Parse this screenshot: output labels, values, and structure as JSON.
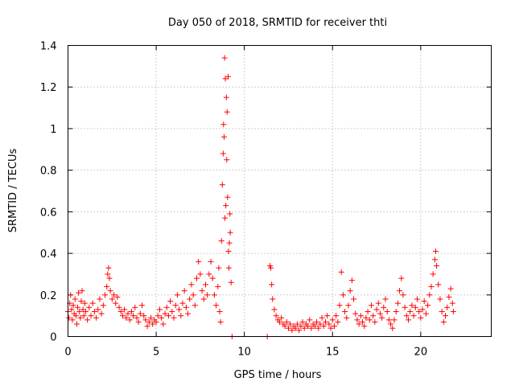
{
  "chart_data": {
    "type": "scatter",
    "title": "Day 050 of 2018, SRMTID for receiver thti",
    "xlabel": "GPS time / hours",
    "ylabel": "SRMTID / TECUs",
    "xlim": [
      0,
      24
    ],
    "ylim": [
      0,
      1.4
    ],
    "x_ticks": [
      0,
      5,
      10,
      15,
      20
    ],
    "x_tick_labels": [
      "0",
      "5",
      "10",
      "15",
      "20"
    ],
    "y_ticks": [
      0,
      0.2,
      0.4,
      0.6,
      0.8,
      1.0,
      1.2,
      1.4
    ],
    "y_tick_labels": [
      "0",
      "0.2",
      "0.4",
      "0.6",
      "0.8",
      "1",
      "1.2",
      "1.4"
    ],
    "grid": true,
    "marker": "+",
    "marker_color": "#ff0000",
    "series": [
      {
        "name": "SRMTID",
        "points": [
          [
            0.0,
            0.12
          ],
          [
            0.05,
            0.09
          ],
          [
            0.1,
            0.16
          ],
          [
            0.15,
            0.2
          ],
          [
            0.2,
            0.13
          ],
          [
            0.25,
            0.08
          ],
          [
            0.3,
            0.15
          ],
          [
            0.35,
            0.11
          ],
          [
            0.4,
            0.18
          ],
          [
            0.45,
            0.1
          ],
          [
            0.5,
            0.06
          ],
          [
            0.55,
            0.14
          ],
          [
            0.6,
            0.21
          ],
          [
            0.65,
            0.12
          ],
          [
            0.7,
            0.09
          ],
          [
            0.75,
            0.17
          ],
          [
            0.8,
            0.22
          ],
          [
            0.85,
            0.13
          ],
          [
            0.9,
            0.1
          ],
          [
            0.95,
            0.16
          ],
          [
            1.0,
            0.12
          ],
          [
            1.1,
            0.08
          ],
          [
            1.2,
            0.14
          ],
          [
            1.3,
            0.1
          ],
          [
            1.4,
            0.16
          ],
          [
            1.5,
            0.12
          ],
          [
            1.6,
            0.09
          ],
          [
            1.7,
            0.13
          ],
          [
            1.8,
            0.18
          ],
          [
            1.9,
            0.11
          ],
          [
            2.0,
            0.15
          ],
          [
            2.1,
            0.2
          ],
          [
            2.2,
            0.24
          ],
          [
            2.25,
            0.3
          ],
          [
            2.3,
            0.33
          ],
          [
            2.35,
            0.28
          ],
          [
            2.4,
            0.22
          ],
          [
            2.5,
            0.18
          ],
          [
            2.6,
            0.2
          ],
          [
            2.7,
            0.16
          ],
          [
            2.8,
            0.19
          ],
          [
            2.9,
            0.14
          ],
          [
            3.0,
            0.12
          ],
          [
            3.1,
            0.1
          ],
          [
            3.2,
            0.13
          ],
          [
            3.3,
            0.09
          ],
          [
            3.4,
            0.11
          ],
          [
            3.5,
            0.08
          ],
          [
            3.6,
            0.12
          ],
          [
            3.7,
            0.1
          ],
          [
            3.8,
            0.14
          ],
          [
            3.9,
            0.09
          ],
          [
            4.0,
            0.07
          ],
          [
            4.1,
            0.11
          ],
          [
            4.2,
            0.15
          ],
          [
            4.3,
            0.1
          ],
          [
            4.4,
            0.08
          ],
          [
            4.5,
            0.05
          ],
          [
            4.6,
            0.07
          ],
          [
            4.7,
            0.09
          ],
          [
            4.8,
            0.06
          ],
          [
            4.9,
            0.08
          ],
          [
            5.0,
            0.07
          ],
          [
            5.1,
            0.1
          ],
          [
            5.2,
            0.13
          ],
          [
            5.3,
            0.09
          ],
          [
            5.4,
            0.06
          ],
          [
            5.5,
            0.11
          ],
          [
            5.6,
            0.14
          ],
          [
            5.7,
            0.1
          ],
          [
            5.8,
            0.17
          ],
          [
            5.9,
            0.12
          ],
          [
            6.0,
            0.09
          ],
          [
            6.1,
            0.15
          ],
          [
            6.2,
            0.2
          ],
          [
            6.3,
            0.13
          ],
          [
            6.4,
            0.1
          ],
          [
            6.5,
            0.16
          ],
          [
            6.6,
            0.22
          ],
          [
            6.7,
            0.14
          ],
          [
            6.8,
            0.11
          ],
          [
            6.9,
            0.18
          ],
          [
            7.0,
            0.25
          ],
          [
            7.1,
            0.2
          ],
          [
            7.2,
            0.15
          ],
          [
            7.3,
            0.28
          ],
          [
            7.4,
            0.36
          ],
          [
            7.5,
            0.3
          ],
          [
            7.6,
            0.22
          ],
          [
            7.7,
            0.18
          ],
          [
            7.8,
            0.25
          ],
          [
            7.9,
            0.2
          ],
          [
            8.0,
            0.3
          ],
          [
            8.1,
            0.36
          ],
          [
            8.2,
            0.28
          ],
          [
            8.3,
            0.2
          ],
          [
            8.4,
            0.15
          ],
          [
            8.5,
            0.24
          ],
          [
            8.55,
            0.33
          ],
          [
            8.6,
            0.12
          ],
          [
            8.65,
            0.07
          ],
          [
            8.7,
            0.46
          ],
          [
            8.75,
            0.73
          ],
          [
            8.8,
            0.88
          ],
          [
            8.82,
            1.02
          ],
          [
            8.85,
            0.96
          ],
          [
            8.88,
            1.34
          ],
          [
            8.9,
            0.57
          ],
          [
            8.92,
            1.24
          ],
          [
            8.95,
            0.63
          ],
          [
            8.98,
            1.15
          ],
          [
            9.0,
            0.85
          ],
          [
            9.02,
            1.08
          ],
          [
            9.05,
            0.67
          ],
          [
            9.08,
            1.25
          ],
          [
            9.1,
            0.41
          ],
          [
            9.12,
            0.33
          ],
          [
            9.15,
            0.45
          ],
          [
            9.18,
            0.59
          ],
          [
            9.2,
            0.5
          ],
          [
            9.25,
            0.26
          ],
          [
            9.3,
            0.0
          ],
          [
            11.3,
            0.0
          ],
          [
            11.45,
            0.34
          ],
          [
            11.5,
            0.33
          ],
          [
            11.55,
            0.25
          ],
          [
            11.6,
            0.18
          ],
          [
            11.7,
            0.13
          ],
          [
            11.8,
            0.1
          ],
          [
            11.9,
            0.08
          ],
          [
            12.0,
            0.07
          ],
          [
            12.1,
            0.09
          ],
          [
            12.2,
            0.06
          ],
          [
            12.3,
            0.05
          ],
          [
            12.4,
            0.07
          ],
          [
            12.5,
            0.04
          ],
          [
            12.6,
            0.06
          ],
          [
            12.7,
            0.03
          ],
          [
            12.8,
            0.05
          ],
          [
            12.9,
            0.04
          ],
          [
            13.0,
            0.06
          ],
          [
            13.1,
            0.03
          ],
          [
            13.2,
            0.05
          ],
          [
            13.3,
            0.07
          ],
          [
            13.4,
            0.04
          ],
          [
            13.5,
            0.06
          ],
          [
            13.6,
            0.05
          ],
          [
            13.7,
            0.08
          ],
          [
            13.8,
            0.04
          ],
          [
            13.9,
            0.06
          ],
          [
            14.0,
            0.05
          ],
          [
            14.1,
            0.07
          ],
          [
            14.2,
            0.04
          ],
          [
            14.3,
            0.06
          ],
          [
            14.4,
            0.09
          ],
          [
            14.5,
            0.05
          ],
          [
            14.6,
            0.07
          ],
          [
            14.7,
            0.1
          ],
          [
            14.8,
            0.06
          ],
          [
            14.9,
            0.04
          ],
          [
            15.0,
            0.08
          ],
          [
            15.1,
            0.05
          ],
          [
            15.2,
            0.1
          ],
          [
            15.3,
            0.07
          ],
          [
            15.4,
            0.15
          ],
          [
            15.5,
            0.31
          ],
          [
            15.6,
            0.2
          ],
          [
            15.7,
            0.12
          ],
          [
            15.8,
            0.09
          ],
          [
            15.9,
            0.15
          ],
          [
            16.0,
            0.22
          ],
          [
            16.1,
            0.27
          ],
          [
            16.2,
            0.18
          ],
          [
            16.3,
            0.11
          ],
          [
            16.4,
            0.08
          ],
          [
            16.5,
            0.06
          ],
          [
            16.6,
            0.1
          ],
          [
            16.7,
            0.07
          ],
          [
            16.8,
            0.05
          ],
          [
            16.9,
            0.09
          ],
          [
            17.0,
            0.12
          ],
          [
            17.1,
            0.08
          ],
          [
            17.2,
            0.15
          ],
          [
            17.3,
            0.1
          ],
          [
            17.4,
            0.07
          ],
          [
            17.5,
            0.13
          ],
          [
            17.6,
            0.16
          ],
          [
            17.7,
            0.11
          ],
          [
            17.8,
            0.09
          ],
          [
            17.9,
            0.14
          ],
          [
            18.0,
            0.18
          ],
          [
            18.1,
            0.12
          ],
          [
            18.2,
            0.08
          ],
          [
            18.3,
            0.06
          ],
          [
            18.4,
            0.04
          ],
          [
            18.5,
            0.08
          ],
          [
            18.6,
            0.12
          ],
          [
            18.7,
            0.16
          ],
          [
            18.8,
            0.22
          ],
          [
            18.9,
            0.28
          ],
          [
            19.0,
            0.2
          ],
          [
            19.1,
            0.14
          ],
          [
            19.2,
            0.1
          ],
          [
            19.3,
            0.08
          ],
          [
            19.4,
            0.12
          ],
          [
            19.5,
            0.15
          ],
          [
            19.6,
            0.1
          ],
          [
            19.7,
            0.14
          ],
          [
            19.8,
            0.18
          ],
          [
            19.9,
            0.12
          ],
          [
            20.0,
            0.09
          ],
          [
            20.1,
            0.13
          ],
          [
            20.2,
            0.17
          ],
          [
            20.3,
            0.11
          ],
          [
            20.4,
            0.15
          ],
          [
            20.5,
            0.2
          ],
          [
            20.6,
            0.24
          ],
          [
            20.7,
            0.3
          ],
          [
            20.8,
            0.37
          ],
          [
            20.85,
            0.41
          ],
          [
            20.9,
            0.34
          ],
          [
            21.0,
            0.25
          ],
          [
            21.1,
            0.18
          ],
          [
            21.2,
            0.12
          ],
          [
            21.3,
            0.07
          ],
          [
            21.4,
            0.1
          ],
          [
            21.5,
            0.14
          ],
          [
            21.6,
            0.19
          ],
          [
            21.7,
            0.23
          ],
          [
            21.8,
            0.16
          ],
          [
            21.85,
            0.12
          ]
        ]
      }
    ]
  }
}
